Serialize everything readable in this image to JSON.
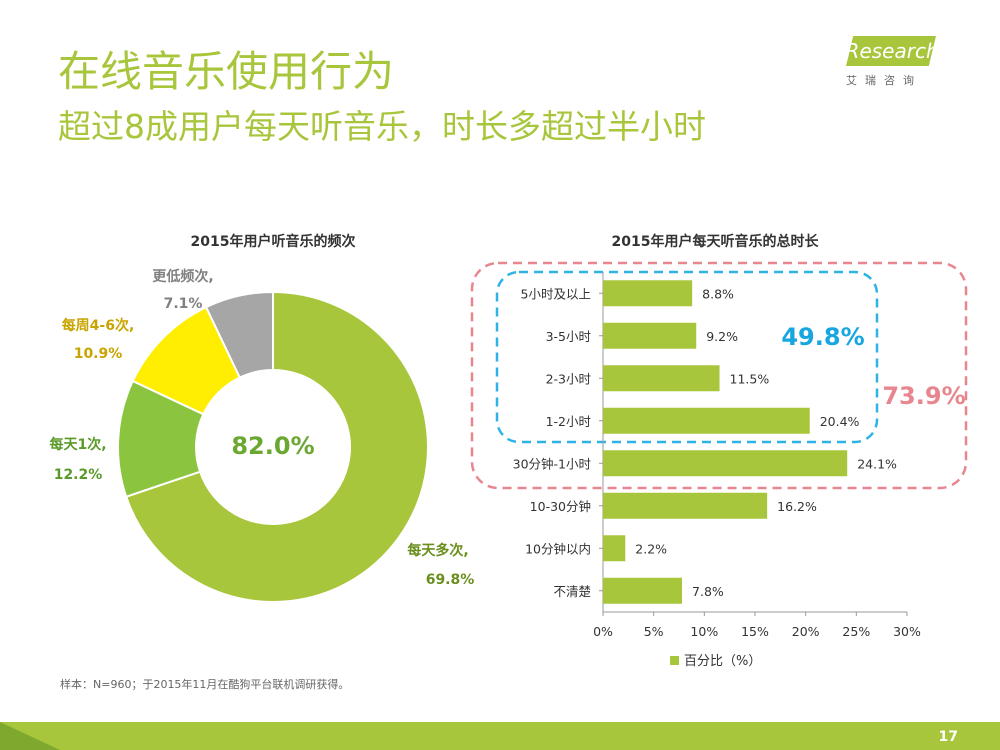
{
  "header": {
    "title": "在线音乐使用行为",
    "subtitle": "超过8成用户每天听音乐，时长多超过半小时"
  },
  "logo": {
    "text": "iResearch",
    "sub": "艾瑞咨询"
  },
  "colors": {
    "accent": "#a8c63c",
    "blue_dash": "#2fb3e6",
    "red_dash": "#e8868f",
    "pie_green": "#a8c63c",
    "pie_green2": "#8bc43f",
    "pie_yellow": "#ffee00",
    "pie_gray": "#a6a6a6",
    "bar": "#a8c63c"
  },
  "chart_data": [
    {
      "type": "pie",
      "title": "2015年用户听音乐的频次",
      "center_label": "82.0%",
      "slices": [
        {
          "label": "每天多次,",
          "value": 69.8,
          "value_label": "69.8%"
        },
        {
          "label": "每天1次,",
          "value": 12.2,
          "value_label": "12.2%"
        },
        {
          "label": "每周4-6次,",
          "value": 10.9,
          "value_label": "10.9%"
        },
        {
          "label": "更低频次,",
          "value": 7.1,
          "value_label": "7.1%"
        }
      ]
    },
    {
      "type": "bar",
      "orientation": "horizontal",
      "title": "2015年用户每天听音乐的总时长",
      "categories": [
        "5小时及以上",
        "3-5小时",
        "2-3小时",
        "1-2小时",
        "30分钟-1小时",
        "10-30分钟",
        "10分钟以内",
        "不清楚"
      ],
      "values": [
        8.8,
        9.2,
        11.5,
        20.4,
        24.1,
        16.2,
        2.2,
        7.8
      ],
      "value_labels": [
        "8.8%",
        "9.2%",
        "11.5%",
        "20.4%",
        "24.1%",
        "16.2%",
        "2.2%",
        "7.8%"
      ],
      "xlim": [
        0,
        30
      ],
      "xticks": [
        "0%",
        "5%",
        "10%",
        "15%",
        "20%",
        "25%",
        "30%"
      ],
      "legend": "百分比（%）",
      "annotations": [
        {
          "text": "49.8%"
        },
        {
          "text": "73.9%"
        }
      ]
    }
  ],
  "footer": {
    "note": "样本：N=960；于2015年11月在酷狗平台联机调研获得。",
    "page": "17"
  }
}
